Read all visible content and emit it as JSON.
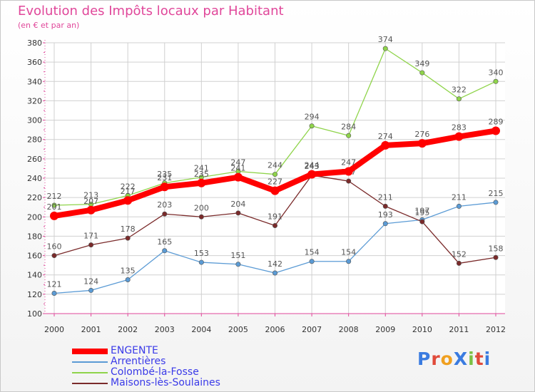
{
  "header": {
    "title": "Evolution des Impôts locaux par Habitant",
    "subtitle": "(en € et par an)"
  },
  "logo": {
    "text": "ProXiti"
  },
  "colors": {
    "title": "#e0479a",
    "axis": "#e0479a",
    "grid": "#d0d0d0",
    "legend_text": "#3a3ae8",
    "value_label": "#555555"
  },
  "chart_data": {
    "type": "line",
    "title": "Evolution des Impôts locaux par Habitant",
    "subtitle": "(en € et par an)",
    "xlabel": "",
    "ylabel": "",
    "ylim": [
      100,
      380
    ],
    "ytick_step": 20,
    "grid": true,
    "legend_position": "bottom-left",
    "x": [
      "2000",
      "2001",
      "2002",
      "2003",
      "2004",
      "2005",
      "2006",
      "2007",
      "2008",
      "2009",
      "2010",
      "2011",
      "2012"
    ],
    "series": [
      {
        "name": "ENGENTE",
        "color": "#ff0000",
        "emphasis": true,
        "values": [
          201,
          207,
          217,
          231,
          235,
          241,
          227,
          244,
          247,
          274,
          276,
          283,
          289
        ]
      },
      {
        "name": "Arrentières",
        "color": "#5b9bd5",
        "values": [
          121,
          124,
          135,
          165,
          153,
          151,
          142,
          154,
          154,
          193,
          197,
          211,
          215
        ]
      },
      {
        "name": "Colombé-la-Fosse",
        "color": "#8fd44a",
        "values": [
          212,
          213,
          222,
          235,
          241,
          247,
          244,
          294,
          284,
          374,
          349,
          322,
          340
        ]
      },
      {
        "name": "Maisons-lès-Soulaines",
        "color": "#7a2a2a",
        "values": [
          160,
          171,
          178,
          203,
          200,
          204,
          191,
          243,
          237,
          211,
          195,
          152,
          158
        ]
      }
    ]
  }
}
